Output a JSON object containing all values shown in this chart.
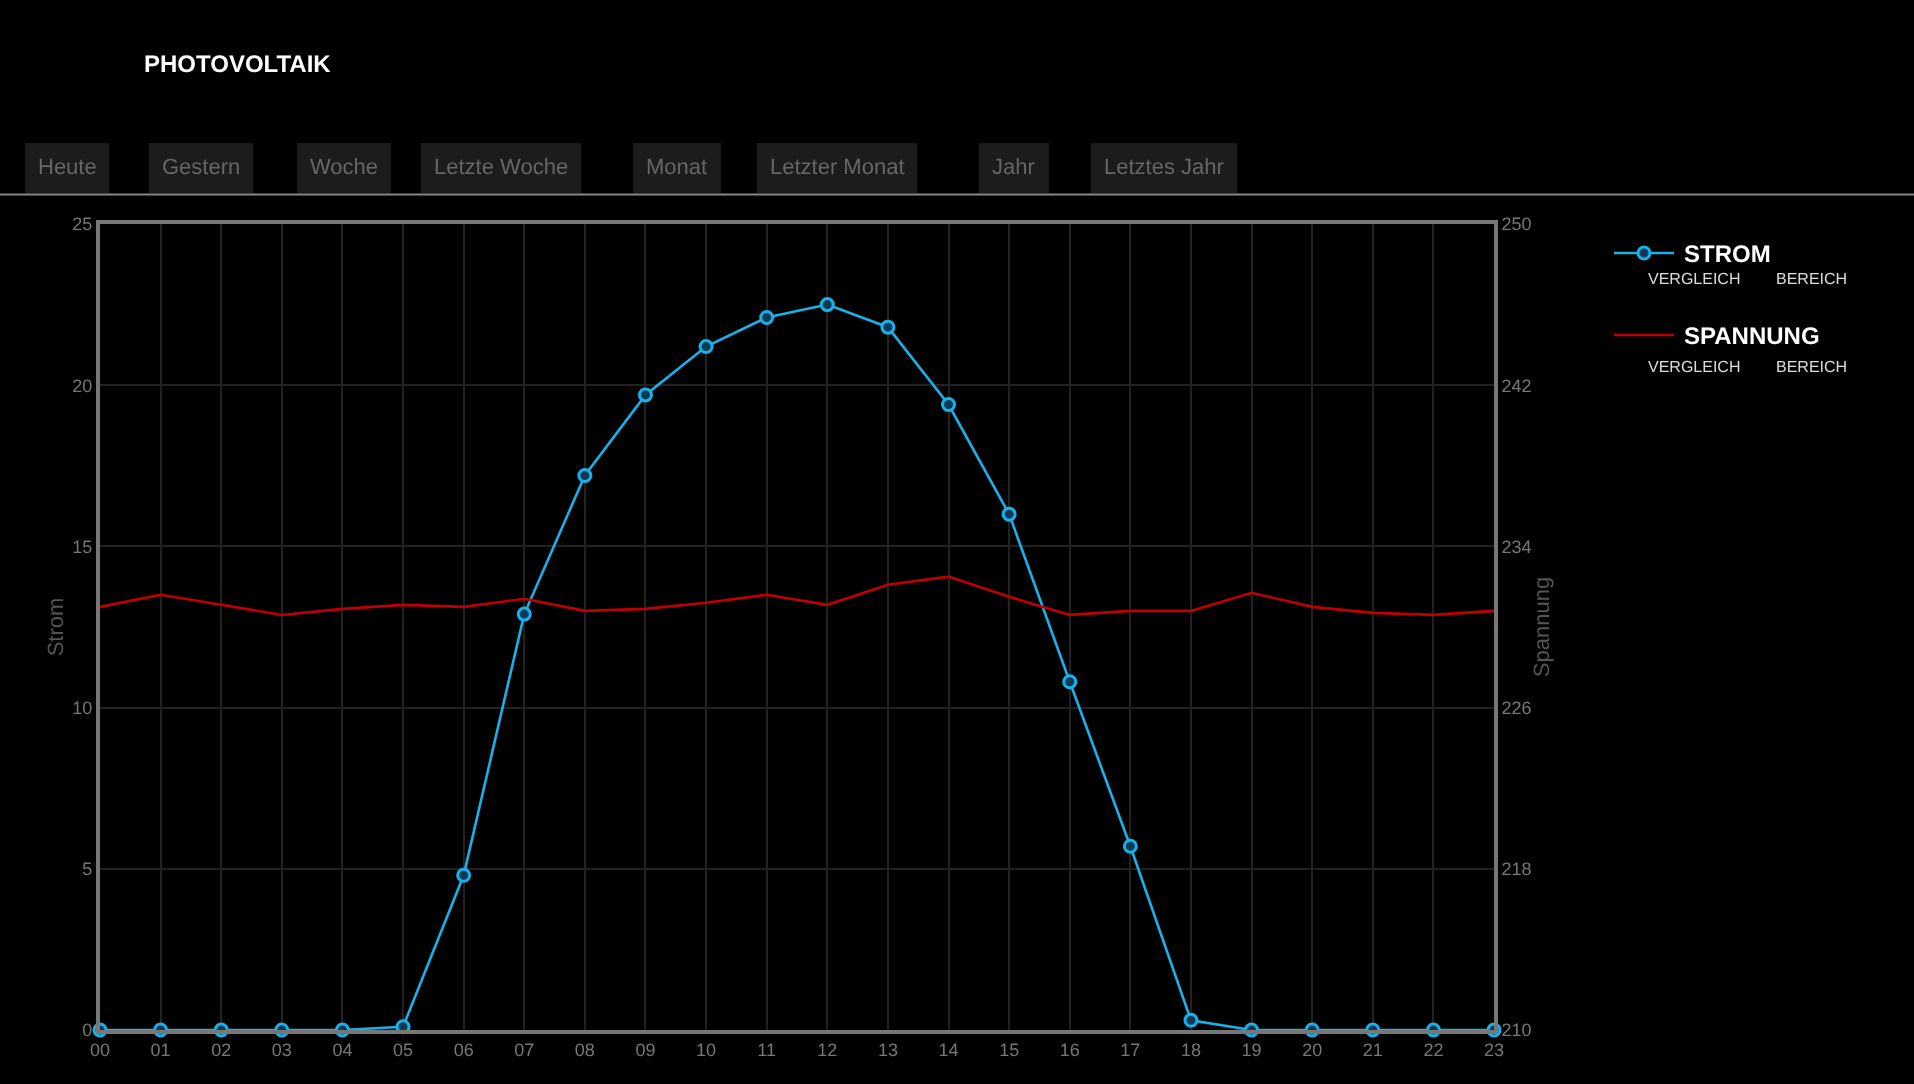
{
  "chart_data": {
    "type": "line",
    "title": "PHOTOVOLTAIK",
    "categories": [
      "00",
      "01",
      "02",
      "03",
      "04",
      "05",
      "06",
      "07",
      "08",
      "09",
      "10",
      "11",
      "12",
      "13",
      "14",
      "15",
      "16",
      "17",
      "18",
      "19",
      "20",
      "21",
      "22",
      "23"
    ],
    "ylabel": "Strom",
    "y2label": "Spannung",
    "ylim": [
      0,
      25
    ],
    "yticks": [
      0,
      5,
      10,
      15,
      20,
      25
    ],
    "y2lim": [
      210,
      250
    ],
    "y2ticks": [
      210,
      218,
      226,
      234,
      242,
      250
    ],
    "series": [
      {
        "name": "STROM",
        "color": "#1ab0e8",
        "marker": "circle",
        "values": [
          0,
          0,
          0,
          0,
          0,
          0.1,
          4.8,
          12.9,
          17.2,
          19.7,
          21.2,
          22.1,
          22.5,
          21.8,
          19.4,
          16.0,
          10.8,
          5.7,
          0.3,
          0,
          0,
          0,
          0,
          0
        ]
      },
      {
        "name": "SPANNUNG",
        "color": "#c00000",
        "marker": "none",
        "axis": "y2",
        "values": [
          231.0,
          231.6,
          231.1,
          230.6,
          230.9,
          231.1,
          231.0,
          231.4,
          230.8,
          230.9,
          231.2,
          231.6,
          231.1,
          232.1,
          232.5,
          231.5,
          230.6,
          230.8,
          230.8,
          231.7,
          231.0,
          230.7,
          230.6,
          230.8
        ]
      }
    ],
    "annotations": [
      "Heute",
      "Gestern",
      "Woche",
      "Letzte Woche",
      "Monat",
      "Letzter Monat",
      "Jahr",
      "Letztes Jahr",
      "VERGLEICH",
      "BEREICH",
      "VERGLEICH",
      "BEREICH"
    ],
    "grid": true,
    "legend": "top right",
    "line_style": "solid"
  }
}
